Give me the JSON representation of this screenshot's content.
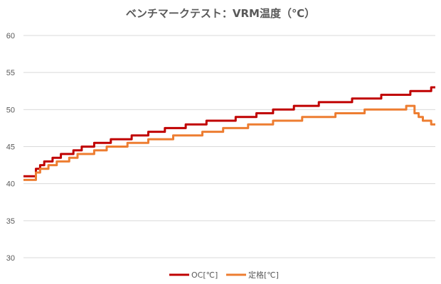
{
  "chart_data": {
    "type": "line",
    "title": "ベンチマークテスト：VRM温度（℃）",
    "xlabel": "",
    "ylabel": "",
    "ylim": [
      30,
      60
    ],
    "yticks": [
      30,
      35,
      40,
      45,
      50,
      55,
      60
    ],
    "grid": true,
    "legend_position": "bottom",
    "x_count": 100,
    "series": [
      {
        "name": "OC[℃]",
        "color": "#c00000",
        "values": [
          41,
          41,
          41,
          42,
          42.5,
          43,
          43,
          43.5,
          43.5,
          44,
          44,
          44,
          44.5,
          44.5,
          45,
          45,
          45,
          45.5,
          45.5,
          45.5,
          45.5,
          46,
          46,
          46,
          46,
          46,
          46.5,
          46.5,
          46.5,
          46.5,
          47,
          47,
          47,
          47,
          47.5,
          47.5,
          47.5,
          47.5,
          47.5,
          48,
          48,
          48,
          48,
          48,
          48.5,
          48.5,
          48.5,
          48.5,
          48.5,
          48.5,
          48.5,
          49,
          49,
          49,
          49,
          49,
          49.5,
          49.5,
          49.5,
          49.5,
          50,
          50,
          50,
          50,
          50,
          50.5,
          50.5,
          50.5,
          50.5,
          50.5,
          50.5,
          51,
          51,
          51,
          51,
          51,
          51,
          51,
          51,
          51.5,
          51.5,
          51.5,
          51.5,
          51.5,
          51.5,
          51.5,
          52,
          52,
          52,
          52,
          52,
          52,
          52,
          52.5,
          52.5,
          52.5,
          52.5,
          52.5,
          53,
          53
        ]
      },
      {
        "name": "定格[℃]",
        "color": "#ed7d31",
        "values": [
          40.5,
          40.5,
          40.5,
          41.5,
          42,
          42,
          42.5,
          42.5,
          43,
          43,
          43,
          43.5,
          43.5,
          44,
          44,
          44,
          44,
          44.5,
          44.5,
          44.5,
          45,
          45,
          45,
          45,
          45,
          45.5,
          45.5,
          45.5,
          45.5,
          45.5,
          46,
          46,
          46,
          46,
          46,
          46,
          46.5,
          46.5,
          46.5,
          46.5,
          46.5,
          46.5,
          46.5,
          47,
          47,
          47,
          47,
          47,
          47.5,
          47.5,
          47.5,
          47.5,
          47.5,
          47.5,
          48,
          48,
          48,
          48,
          48,
          48,
          48.5,
          48.5,
          48.5,
          48.5,
          48.5,
          48.5,
          48.5,
          49,
          49,
          49,
          49,
          49,
          49,
          49,
          49,
          49.5,
          49.5,
          49.5,
          49.5,
          49.5,
          49.5,
          49.5,
          50,
          50,
          50,
          50,
          50,
          50,
          50,
          50,
          50,
          50,
          50.5,
          50.5,
          49.5,
          49,
          48.5,
          48.5,
          48,
          48
        ]
      }
    ]
  }
}
